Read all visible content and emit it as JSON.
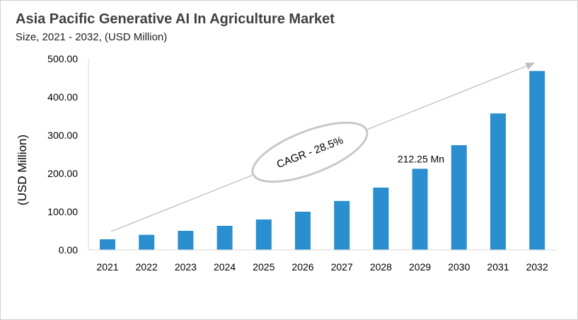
{
  "chart_data": {
    "type": "bar",
    "title": "Asia Pacific Generative AI In Agriculture Market",
    "subtitle": "Size, 2021 - 2032, (USD Million)",
    "ylabel": "(USD Million)",
    "xlabel": "",
    "categories": [
      "2021",
      "2022",
      "2023",
      "2024",
      "2025",
      "2026",
      "2027",
      "2028",
      "2029",
      "2030",
      "2031",
      "2032"
    ],
    "values": [
      27.8,
      39.5,
      50.0,
      63.0,
      79.6,
      100.0,
      128.0,
      163.0,
      212.25,
      274.0,
      357.0,
      468.0
    ],
    "ylim": [
      0,
      500
    ],
    "yticks": [
      "0.00",
      "100.00",
      "200.00",
      "300.00",
      "400.00",
      "500.00"
    ],
    "grid": false,
    "bar_color": "#2b8fcf",
    "annotations": {
      "data_label": "212.25 Mn",
      "data_label_category": "2029",
      "cagr": "CAGR - 28.5%"
    }
  }
}
